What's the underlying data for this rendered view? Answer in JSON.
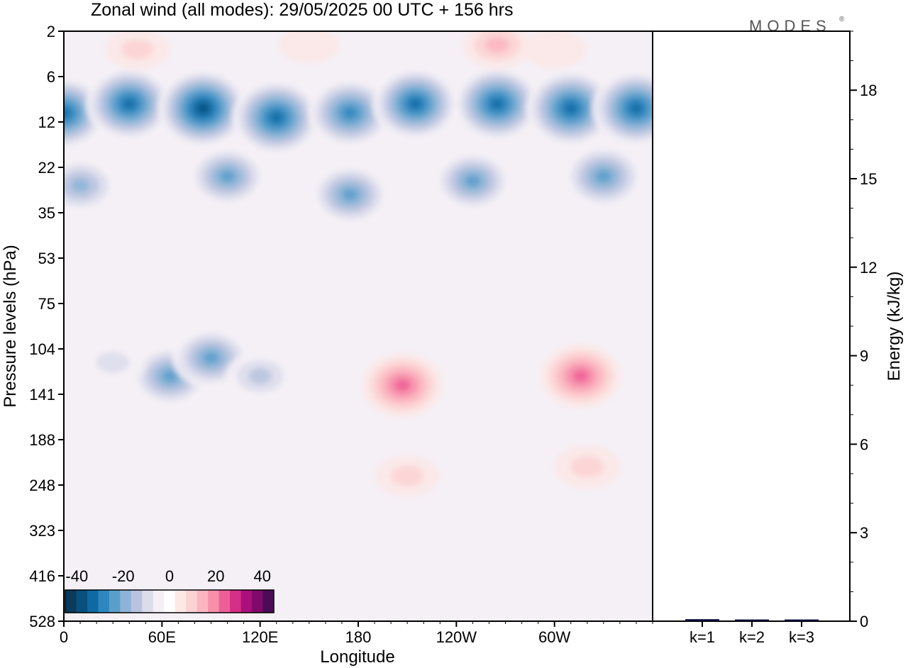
{
  "title": "Zonal wind (all modes):  29/05/2025  00 UTC  + 156 hrs",
  "logo": "MODES",
  "logo_mark": "®",
  "chart_data": [
    {
      "type": "heatmap",
      "title": "Zonal wind (all modes):  29/05/2025  00 UTC  + 156 hrs",
      "xlabel": "Longitude",
      "ylabel": "Pressure levels (hPa)",
      "x_ticks": [
        "0",
        "60E",
        "120E",
        "180",
        "120W",
        "60W"
      ],
      "x_tick_degrees": [
        0,
        60,
        120,
        180,
        240,
        300
      ],
      "xlim_degrees": [
        0,
        360
      ],
      "y_ticks": [
        "2",
        "6",
        "12",
        "22",
        "35",
        "53",
        "75",
        "104",
        "141",
        "188",
        "248",
        "323",
        "416",
        "528"
      ],
      "colorbar": {
        "tick_labels": [
          "-40",
          "-20",
          "0",
          "20",
          "40"
        ],
        "tick_values": [
          -40,
          -20,
          0,
          20,
          40
        ],
        "range": [
          -45,
          45
        ],
        "step": 5,
        "colors": [
          "#0a3a5c",
          "#08507e",
          "#0f6aa3",
          "#2d87be",
          "#5a9fcb",
          "#8db4d6",
          "#b9c3df",
          "#dcdcec",
          "#f4f0f6",
          "#ffffff",
          "#fde8e6",
          "#fdd2d4",
          "#fbb6c2",
          "#f78fab",
          "#ee5f97",
          "#d62f87",
          "#ab0f7b",
          "#7f0a6a",
          "#4c0b56"
        ]
      },
      "features": [
        {
          "x": 0,
          "y": 1.8,
          "value": -35
        },
        {
          "x": 40,
          "y": 1.6,
          "value": -36
        },
        {
          "x": 85,
          "y": 1.7,
          "value": -40
        },
        {
          "x": 130,
          "y": 1.9,
          "value": -38
        },
        {
          "x": 175,
          "y": 1.8,
          "value": -33
        },
        {
          "x": 215,
          "y": 1.6,
          "value": -35
        },
        {
          "x": 265,
          "y": 1.6,
          "value": -37
        },
        {
          "x": 310,
          "y": 1.7,
          "value": -39
        },
        {
          "x": 350,
          "y": 1.7,
          "value": -38
        },
        {
          "x": 10,
          "y": 3.4,
          "value": -22
        },
        {
          "x": 100,
          "y": 3.2,
          "value": -25
        },
        {
          "x": 175,
          "y": 3.6,
          "value": -26
        },
        {
          "x": 250,
          "y": 3.3,
          "value": -25
        },
        {
          "x": 330,
          "y": 3.2,
          "value": -28
        },
        {
          "x": 45,
          "y": 0.4,
          "value": 10
        },
        {
          "x": 150,
          "y": 0.3,
          "value": 6
        },
        {
          "x": 265,
          "y": 0.3,
          "value": 15
        },
        {
          "x": 300,
          "y": 0.4,
          "value": 8
        },
        {
          "x": 65,
          "y": 7.6,
          "value": -26
        },
        {
          "x": 90,
          "y": 7.2,
          "value": -25
        },
        {
          "x": 120,
          "y": 7.6,
          "value": -16
        },
        {
          "x": 30,
          "y": 7.3,
          "value": -11
        },
        {
          "x": 100,
          "y": 9.2,
          "value": -7
        },
        {
          "x": 207,
          "y": 7.8,
          "value": 28
        },
        {
          "x": 316,
          "y": 7.6,
          "value": 28
        },
        {
          "x": 210,
          "y": 9.8,
          "value": 10
        },
        {
          "x": 320,
          "y": 9.6,
          "value": 12
        }
      ]
    },
    {
      "type": "bar",
      "categories": [
        "k=1",
        "k=2",
        "k=3"
      ],
      "values": [
        0.02,
        0.01,
        0.01
      ],
      "ylabel": "Energy (kJ/kg)",
      "y_ticks": [
        "0",
        "3",
        "6",
        "9",
        "12",
        "15",
        "18"
      ],
      "ylim": [
        0,
        20
      ]
    }
  ]
}
